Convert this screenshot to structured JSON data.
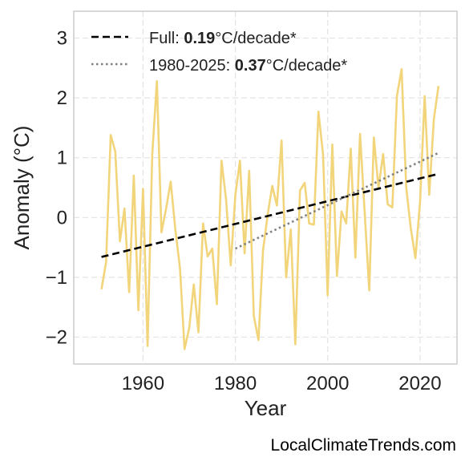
{
  "chart_data": {
    "type": "line",
    "xlabel": "Year",
    "ylabel": "Anomaly (°C)",
    "xlim": [
      1945,
      2028
    ],
    "ylim": [
      -2.45,
      3.45
    ],
    "xticks": [
      1960,
      1980,
      2000,
      2020
    ],
    "yticks": [
      -2,
      -1,
      0,
      1,
      2,
      3
    ],
    "ytick_labels": [
      "−2",
      "−1",
      "0",
      "1",
      "2",
      "3"
    ],
    "grid": true,
    "legend_position": "top-left",
    "series": [
      {
        "color": "#f2d57a",
        "x": [
          1951,
          1952,
          1953,
          1954,
          1955,
          1956,
          1957,
          1958,
          1959,
          1960,
          1961,
          1962,
          1963,
          1964,
          1965,
          1966,
          1967,
          1968,
          1969,
          1970,
          1971,
          1972,
          1973,
          1974,
          1975,
          1976,
          1977,
          1978,
          1979,
          1980,
          1981,
          1982,
          1983,
          1984,
          1985,
          1986,
          1987,
          1988,
          1989,
          1990,
          1991,
          1992,
          1993,
          1994,
          1995,
          1996,
          1997,
          1998,
          1999,
          2000,
          2001,
          2002,
          2003,
          2004,
          2005,
          2006,
          2007,
          2008,
          2009,
          2010,
          2011,
          2012,
          2013,
          2014,
          2015,
          2016,
          2017,
          2018,
          2019,
          2020,
          2021,
          2022,
          2023,
          2024
        ],
        "y": [
          -1.2,
          -0.75,
          1.38,
          1.1,
          -0.4,
          0.15,
          -1.25,
          0.7,
          -1.55,
          0.48,
          -2.15,
          1.05,
          2.28,
          -0.25,
          0.15,
          0.6,
          -0.2,
          -0.85,
          -2.2,
          -1.85,
          -1.12,
          -1.92,
          -0.1,
          -0.65,
          -0.52,
          -1.45,
          0.95,
          0.3,
          -0.8,
          0.38,
          0.95,
          -0.6,
          0.78,
          -1.65,
          -2.05,
          -0.55,
          0.05,
          0.53,
          0.2,
          1.29,
          -1.0,
          -0.2,
          -2.12,
          0.45,
          0.58,
          -0.1,
          -0.12,
          1.77,
          1.05,
          -1.3,
          1.22,
          -0.98,
          0.1,
          -0.1,
          1.15,
          -0.67,
          1.4,
          0.1,
          -1.22,
          1.34,
          0.5,
          1.06,
          0.22,
          0.17,
          2.03,
          2.48,
          0.5,
          -0.18,
          -0.68,
          0.25,
          2.03,
          0.38,
          1.65,
          2.2
        ]
      }
    ],
    "trend_lines": [
      {
        "label_prefix": "Full: ",
        "rate": "0.19",
        "unit": "°C/decade*",
        "style": "dashed",
        "color": "#000000",
        "x": [
          1951,
          2024
        ],
        "y": [
          -0.66,
          0.73
        ]
      },
      {
        "label_prefix": "1980-2025: ",
        "rate": "0.37",
        "unit": "°C/decade*",
        "style": "dotted",
        "color": "#808080",
        "x": [
          1980,
          2024
        ],
        "y": [
          -0.52,
          1.08
        ]
      }
    ]
  },
  "attribution": "LocalClimateTrends.com"
}
